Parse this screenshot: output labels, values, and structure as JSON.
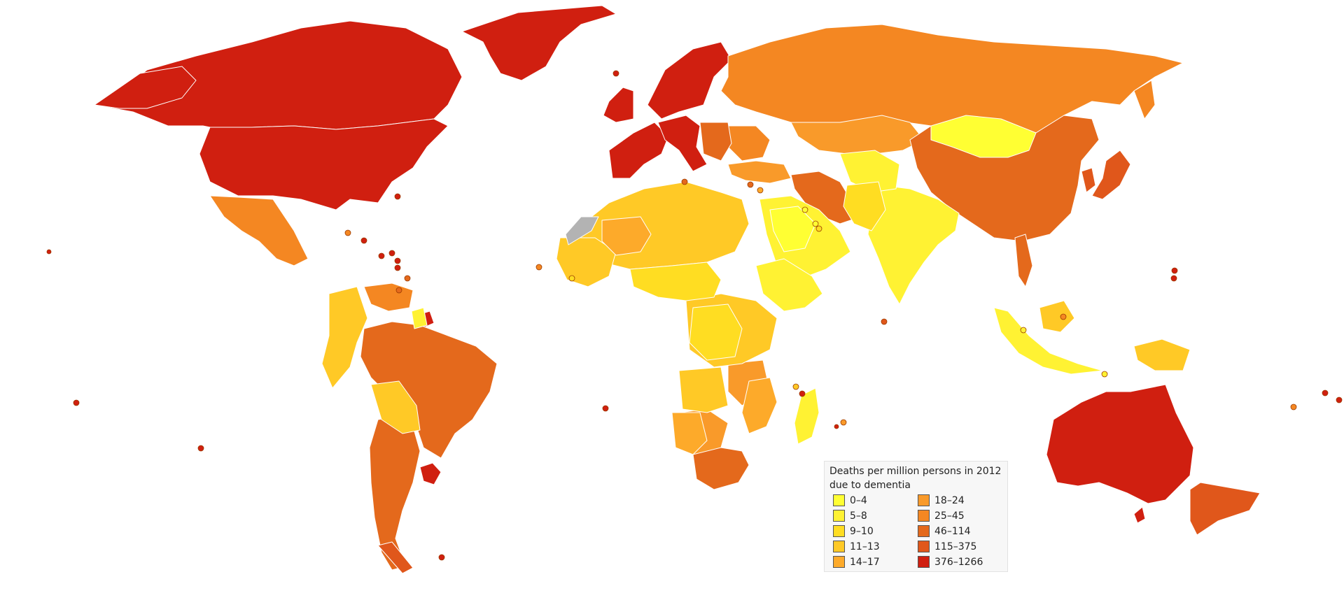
{
  "colors": {
    "ocean": "#ffffff",
    "no_data": "#b3b3b3",
    "border": "#ffffff"
  },
  "legend": {
    "title_line1": "Deaths per million persons in 2012",
    "title_line2": "due to dementia",
    "items": [
      {
        "label": "0–4",
        "color": "#ffff33"
      },
      {
        "label": "5–8",
        "color": "#fff233"
      },
      {
        "label": "9–10",
        "color": "#ffdd22"
      },
      {
        "label": "11–13",
        "color": "#ffc926"
      },
      {
        "label": "14–17",
        "color": "#fdaa2a"
      },
      {
        "label": "18–24",
        "color": "#f99a2a"
      },
      {
        "label": "25–45",
        "color": "#f48722"
      },
      {
        "label": "46–114",
        "color": "#e4691c"
      },
      {
        "label": "115–375",
        "color": "#e0571b"
      },
      {
        "label": "376–1266",
        "color": "#d01f10"
      }
    ]
  }
}
